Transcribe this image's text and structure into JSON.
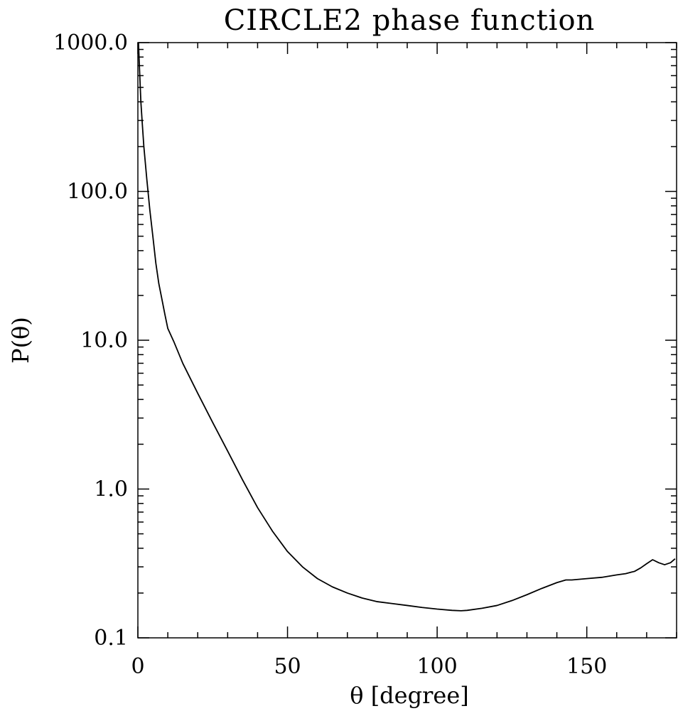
{
  "chart_data": {
    "type": "line",
    "title": "CIRCLE2 phase function",
    "xlabel": "θ [degree]",
    "ylabel": "P(θ)",
    "xlim": [
      0,
      180
    ],
    "ylim": [
      0.1,
      1000
    ],
    "yscale": "log",
    "grid": false,
    "x_ticks": [
      0,
      50,
      100,
      150
    ],
    "x_tick_labels": [
      "0",
      "50",
      "100",
      "150"
    ],
    "y_ticks": [
      0.1,
      1,
      10,
      100,
      1000
    ],
    "y_tick_labels": [
      "0.1",
      "1.0",
      "10.0",
      "100.0",
      "1000.0"
    ],
    "series": [
      {
        "color": "#000000",
        "x": [
          0.2,
          0.5,
          1,
          1.5,
          2,
          3,
          4,
          5,
          6,
          7,
          8,
          9,
          10,
          12,
          15,
          20,
          25,
          30,
          35,
          40,
          45,
          50,
          55,
          60,
          65,
          70,
          75,
          80,
          85,
          90,
          95,
          100,
          105,
          108,
          110,
          115,
          120,
          125,
          130,
          135,
          140,
          143,
          145,
          150,
          155,
          160,
          163,
          166,
          168,
          170,
          172,
          174,
          176,
          178,
          179.5
        ],
        "y": [
          1000,
          700,
          400,
          280,
          200,
          120,
          75,
          50,
          33,
          24,
          19,
          15,
          12,
          9.8,
          7,
          4.4,
          2.8,
          1.8,
          1.15,
          0.75,
          0.52,
          0.38,
          0.3,
          0.25,
          0.22,
          0.2,
          0.185,
          0.175,
          0.17,
          0.165,
          0.16,
          0.156,
          0.153,
          0.152,
          0.153,
          0.158,
          0.165,
          0.178,
          0.195,
          0.215,
          0.235,
          0.245,
          0.245,
          0.25,
          0.255,
          0.265,
          0.27,
          0.28,
          0.295,
          0.315,
          0.335,
          0.32,
          0.31,
          0.32,
          0.34
        ]
      }
    ]
  }
}
